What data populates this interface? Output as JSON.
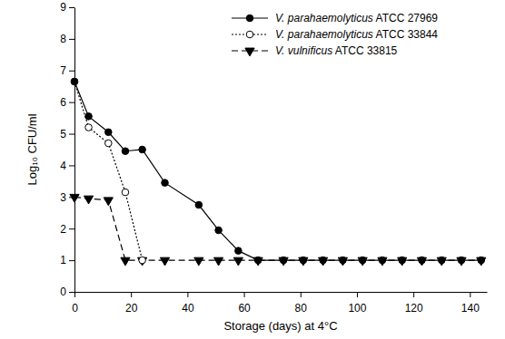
{
  "chart_data": {
    "type": "line",
    "x_label": "Storage (days) at 4°C",
    "y_label": "Log₁₀ CFU/ml",
    "xlim": [
      0,
      146
    ],
    "xticks": [
      0,
      20,
      40,
      60,
      80,
      100,
      120,
      140
    ],
    "ylim": [
      0,
      9
    ],
    "yticks": [
      0,
      1,
      2,
      3,
      4,
      5,
      6,
      7,
      8,
      9
    ],
    "legend": "upper right",
    "series": [
      {
        "name": "V. parahaemolyticus ATCC 27969",
        "color": "#000000",
        "marker": "circle",
        "line_style": "solid",
        "x": [
          0,
          5,
          12,
          18,
          24,
          32,
          44,
          51,
          58,
          65,
          74,
          81,
          88,
          95,
          102,
          109,
          116,
          123,
          130,
          137,
          144
        ],
        "values": [
          6.65,
          5.55,
          5.05,
          4.45,
          4.5,
          3.45,
          2.75,
          1.95,
          1.3,
          1,
          1,
          1,
          1,
          1,
          1,
          1,
          1,
          1,
          1,
          1,
          1
        ]
      },
      {
        "name": "V. parahaemolyticus ATCC 33844",
        "color": "#000000",
        "marker": "open-circle",
        "line_style": "dotted",
        "x": [
          0,
          5,
          12,
          18,
          24
        ],
        "values": [
          6.65,
          5.2,
          4.7,
          3.15,
          1
        ]
      },
      {
        "name": "V. vulnificus ATCC 33815",
        "color": "#000000",
        "marker": "triangle-down",
        "line_style": "dashed",
        "x": [
          0,
          5,
          12,
          18,
          24,
          32,
          44,
          51,
          58,
          65,
          74,
          81,
          88,
          95,
          102,
          109,
          116,
          123,
          130,
          137,
          144
        ],
        "values": [
          3,
          2.95,
          2.9,
          1,
          1,
          1,
          1,
          1,
          1,
          1,
          1,
          1,
          1,
          1,
          1,
          1,
          1,
          1,
          1,
          1,
          1
        ]
      }
    ]
  }
}
